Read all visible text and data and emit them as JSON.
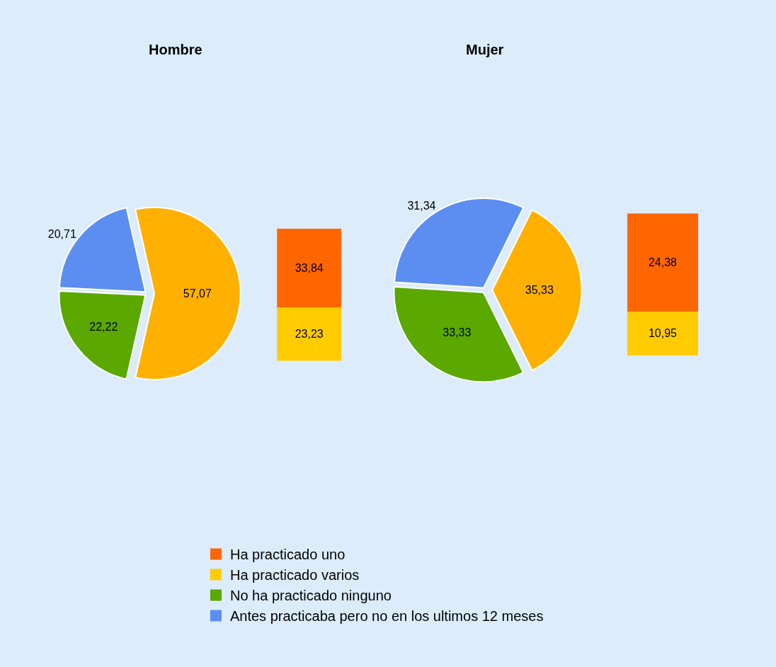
{
  "chart_data": [
    {
      "type": "pie",
      "title": "Hombre",
      "categories": [
        null,
        "No ha practicado ninguno",
        "Antes practicaba pero no en los ultimos 12 meses"
      ],
      "values": [
        57.07,
        22.22,
        20.71
      ],
      "value_labels": [
        "57,07",
        "22,22",
        "20,71"
      ],
      "colors": [
        "#ffb000",
        "#5aa800",
        "#5b8ef0"
      ],
      "legend": "bottom"
    },
    {
      "type": "bar",
      "stacked": true,
      "categories": [
        null
      ],
      "series": [
        {
          "name": "Ha practicado varios",
          "color": "#ffcc00",
          "values": [
            23.23
          ],
          "value_labels": [
            "23,23"
          ]
        },
        {
          "name": "Ha practicado uno",
          "color": "#ff6600",
          "values": [
            33.84
          ],
          "value_labels": [
            "33,84"
          ]
        }
      ],
      "legend": "bottom"
    },
    {
      "type": "pie",
      "title": "Mujer",
      "categories": [
        null,
        null,
        null
      ],
      "values": [
        35.33,
        33.33,
        31.34
      ],
      "value_labels": [
        "35,33",
        "33,33",
        "31,34"
      ],
      "colors": [
        "#ffb000",
        "#5aa800",
        "#5b8ef0"
      ]
    },
    {
      "type": "bar",
      "stacked": true,
      "categories": [
        null
      ],
      "series": [
        {
          "name": "Ha practicado varios",
          "color": "#ffcc00",
          "values": [
            10.95
          ],
          "value_labels": [
            "10,95"
          ]
        },
        {
          "name": "Ha practicado uno",
          "color": "#ff6600",
          "values": [
            24.38
          ],
          "value_labels": [
            "24,38"
          ]
        }
      ],
      "legend": "bottom"
    }
  ]
}
